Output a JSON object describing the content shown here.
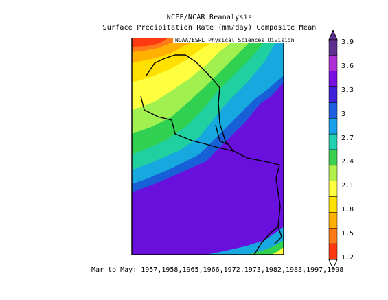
{
  "title": "NCEP/NCAR Reanalysis",
  "subtitle": "Surface Precipitation Rate (mm/day) Composite Mean",
  "credit": "NOAA/ESRL Physical Sciences Division",
  "period_label": "Mar to May: 1957,1958,1965,1966,1972,1973,1982,1983,1997,1998",
  "colorbar": {
    "ticks": [
      "1.2",
      "1.5",
      "1.8",
      "2.1",
      "2.4",
      "2.7",
      "3",
      "3.3",
      "3.6",
      "3.9"
    ],
    "colors": [
      "#ff3a10",
      "#ff7b1a",
      "#ffb000",
      "#ffe000",
      "#ffff40",
      "#b4f04c",
      "#3cd050",
      "#20d0b0",
      "#18a0e8",
      "#2060e0",
      "#4020d8",
      "#7810e0",
      "#b030d8",
      "#603090"
    ]
  }
}
